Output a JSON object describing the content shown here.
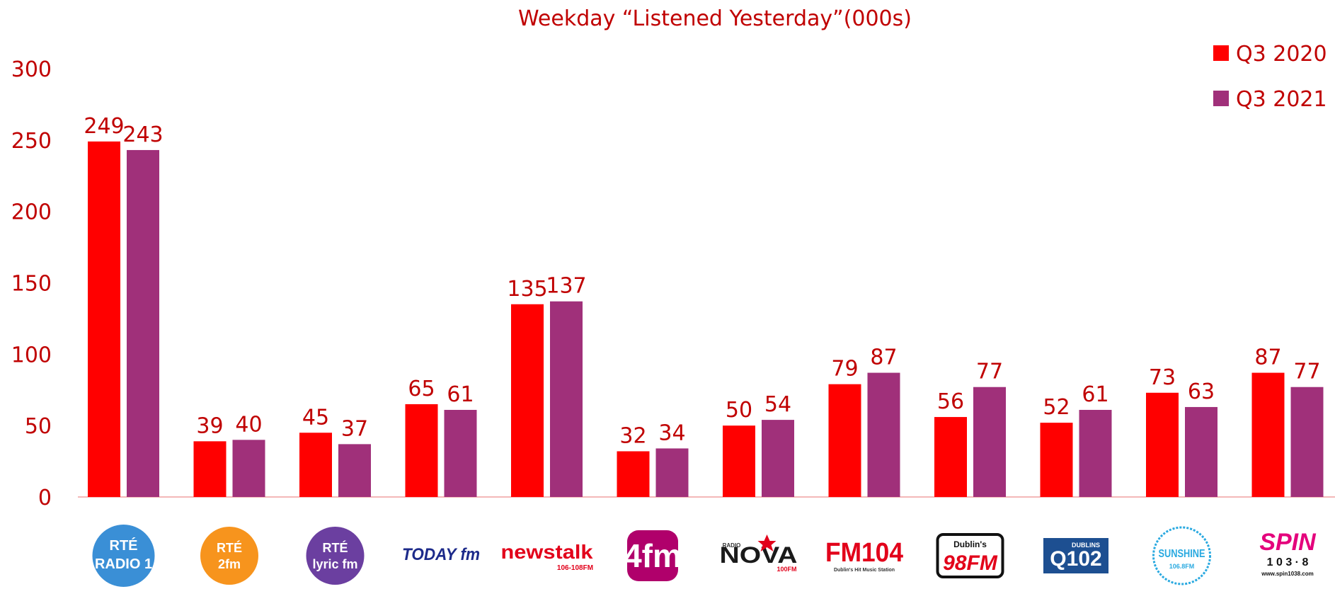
{
  "chart_data": {
    "type": "bar",
    "title": "Weekday “Listened Yesterday”(000s)",
    "categories": [
      "RTÉ Radio 1",
      "RTÉ 2fm",
      "RTÉ lyric fm",
      "Today fm",
      "newstalk",
      "4fm",
      "Radio Nova",
      "FM104",
      "Dublin's 98FM",
      "Dublin's Q102",
      "Sunshine 106.8FM",
      "SPIN 103.8"
    ],
    "series": [
      {
        "name": "Q3 2020",
        "color": "#ff0000",
        "values": [
          249,
          39,
          45,
          65,
          135,
          32,
          50,
          79,
          56,
          52,
          73,
          87
        ]
      },
      {
        "name": "Q3 2021",
        "color": "#a0307a",
        "values": [
          243,
          40,
          37,
          61,
          137,
          34,
          54,
          87,
          77,
          61,
          63,
          77
        ]
      }
    ],
    "ylim": [
      0,
      300
    ],
    "yticks": [
      0,
      50,
      100,
      150,
      200,
      250,
      300
    ],
    "legend_position": "top-right",
    "grid": false,
    "text_color": "#c00000",
    "axis_color": "#f4b8b8",
    "logos": [
      {
        "icon": "rte-radio1-logo",
        "lines": [
          "RTÉ",
          "RADIO 1"
        ],
        "color": "#3a8fd6"
      },
      {
        "icon": "rte-2fm-logo",
        "lines": [
          "RTÉ",
          "2fm"
        ],
        "color": "#f7941d"
      },
      {
        "icon": "rte-lyricfm-logo",
        "lines": [
          "RTÉ",
          "lyric fm"
        ],
        "color": "#6b3fa0"
      },
      {
        "icon": "todayfm-logo",
        "lines": [
          "TODAY fm"
        ],
        "color": "#1c2a8a"
      },
      {
        "icon": "newstalk-logo",
        "lines": [
          "newstalk",
          "106-108FM"
        ],
        "color": "#e2001a"
      },
      {
        "icon": "4fm-logo",
        "lines": [
          "4fm"
        ],
        "color": "#b0006b"
      },
      {
        "icon": "nova-logo",
        "lines": [
          "RADIO",
          "NOVA",
          "100FM"
        ],
        "color": "#1a1a1a"
      },
      {
        "icon": "fm104-logo",
        "lines": [
          "FM104",
          "Dublin's Hit Music Station"
        ],
        "color": "#e2001a"
      },
      {
        "icon": "98fm-logo",
        "lines": [
          "Dublin's",
          "98FM"
        ],
        "color": "#e2001a"
      },
      {
        "icon": "q102-logo",
        "lines": [
          "DUBLINS",
          "Q102"
        ],
        "color": "#1d4f91"
      },
      {
        "icon": "sunshine-logo",
        "lines": [
          "SUNSHINE",
          "106.8FM"
        ],
        "color": "#29a9e0"
      },
      {
        "icon": "spin-logo",
        "lines": [
          "SPIN",
          "1 0 3 · 8",
          "www.spin1038.com"
        ],
        "color": "#e4007c"
      }
    ]
  }
}
